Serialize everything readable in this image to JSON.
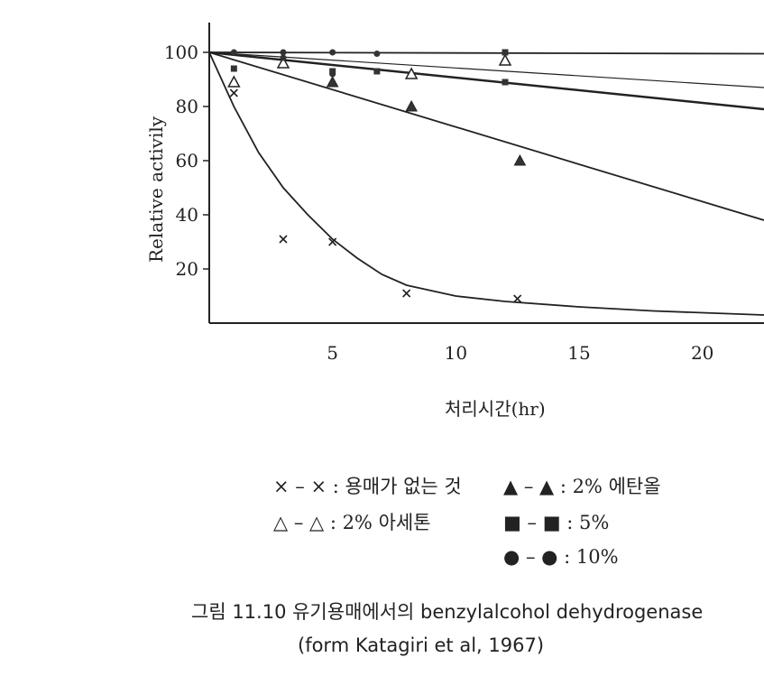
{
  "chart_data": {
    "type": "scatter",
    "xlabel": "처리시간(hr)",
    "ylabel": "Relative activily",
    "xlim": [
      0,
      22.5
    ],
    "ylim": [
      0,
      100
    ],
    "xticks": [
      "5",
      "10",
      "15",
      "20"
    ],
    "yticks": [
      "20",
      "40",
      "60",
      "80",
      "100"
    ],
    "grid": false,
    "series": [
      {
        "name": "용매가 없는 것",
        "marker": "x",
        "points": [
          [
            1,
            85
          ],
          [
            3,
            31
          ],
          [
            5,
            30
          ],
          [
            8,
            11
          ],
          [
            12.5,
            9
          ]
        ],
        "curve": [
          [
            0,
            100
          ],
          [
            1,
            80
          ],
          [
            2,
            63
          ],
          [
            3,
            50
          ],
          [
            4,
            40
          ],
          [
            5,
            31
          ],
          [
            6,
            24
          ],
          [
            7,
            18
          ],
          [
            8,
            14
          ],
          [
            10,
            10
          ],
          [
            12,
            8
          ],
          [
            15,
            6
          ],
          [
            18,
            4.5
          ],
          [
            22.5,
            3
          ]
        ]
      },
      {
        "name": "2% 아세톤",
        "marker": "triangle-open",
        "points": [
          [
            1,
            89
          ],
          [
            3,
            96
          ],
          [
            8.2,
            92
          ],
          [
            12,
            97
          ]
        ]
      },
      {
        "name": "2% 에탄올",
        "marker": "triangle-filled",
        "points": [
          [
            5,
            89
          ],
          [
            8.2,
            80
          ],
          [
            12.6,
            60
          ]
        ],
        "curve": [
          [
            0,
            100
          ],
          [
            22.5,
            38
          ]
        ]
      },
      {
        "name": "5%",
        "marker": "square-filled",
        "points": [
          [
            1,
            94
          ],
          [
            5,
            93
          ],
          [
            6.8,
            93
          ],
          [
            12,
            89
          ],
          [
            12,
            100
          ]
        ],
        "curve": [
          [
            0,
            100
          ],
          [
            22.5,
            79
          ]
        ]
      },
      {
        "name": "10%",
        "marker": "circle-filled",
        "points": [
          [
            1,
            100
          ],
          [
            3,
            100
          ],
          [
            5,
            100
          ],
          [
            6.8,
            99.5
          ],
          [
            3,
            98
          ],
          [
            5,
            92
          ]
        ],
        "curve": [
          [
            0,
            100
          ],
          [
            22.5,
            99.5
          ]
        ]
      }
    ],
    "extra_curve": [
      [
        0,
        100
      ],
      [
        22.5,
        87
      ]
    ]
  },
  "legend": {
    "row1_left": "× – × : 용매가 없는 것",
    "row1_right": "▲ – ▲ : 2% 에탄올",
    "row2_left": "△ – △ : 2% 아세톤",
    "row2_right": "■ – ■ : 5%",
    "row3_right": "● – ● : 10%"
  },
  "caption": {
    "line1": "그림 11.10 유기용매에서의 benzylalcohol dehydrogenase",
    "line2": "(form Katagiri et al, 1967)"
  }
}
